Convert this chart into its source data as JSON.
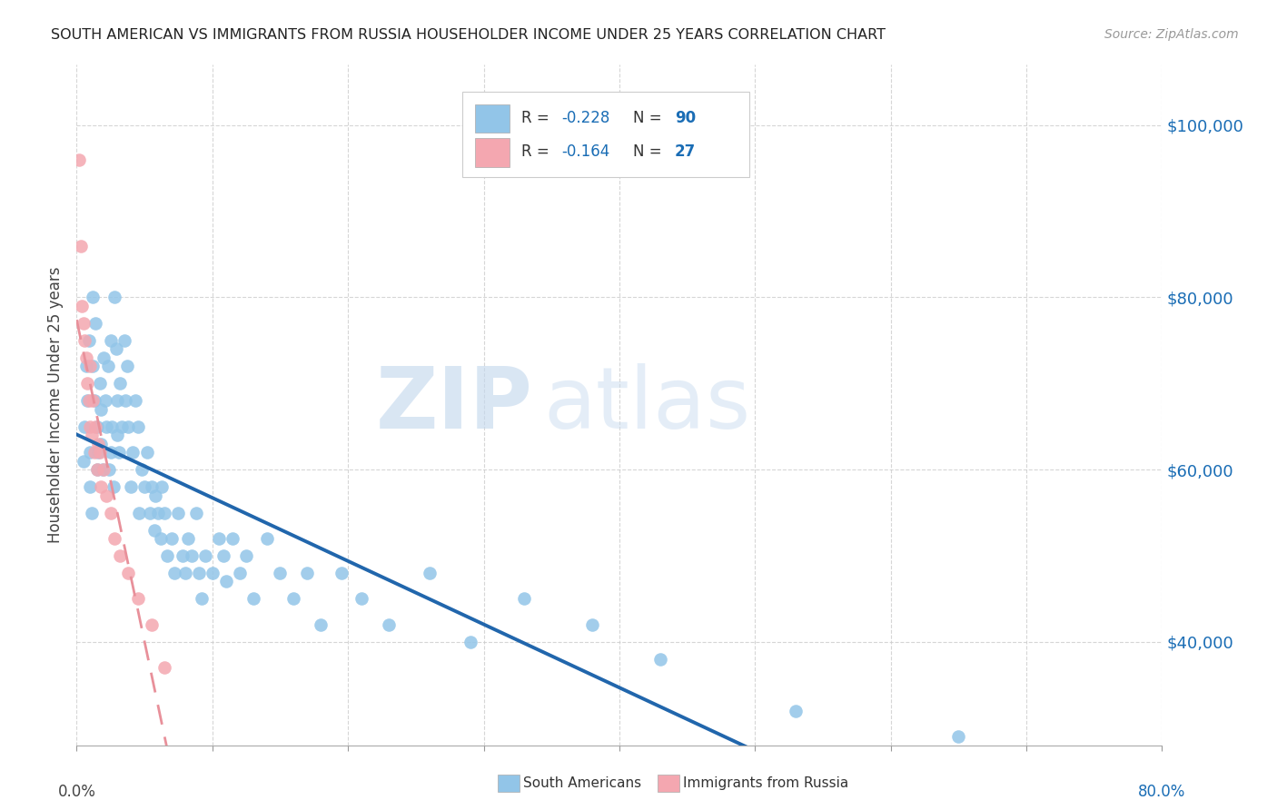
{
  "title": "SOUTH AMERICAN VS IMMIGRANTS FROM RUSSIA HOUSEHOLDER INCOME UNDER 25 YEARS CORRELATION CHART",
  "source": "Source: ZipAtlas.com",
  "ylabel": "Householder Income Under 25 years",
  "ytick_values": [
    40000,
    60000,
    80000,
    100000
  ],
  "xlim": [
    0.0,
    0.8
  ],
  "ylim": [
    28000,
    107000
  ],
  "R1": "-0.228",
  "N1": "90",
  "R2": "-0.164",
  "N2": "27",
  "blue_color": "#92c5e8",
  "pink_color": "#f4a7b0",
  "trendline1_color": "#2166ac",
  "trendline2_color": "#e8909a",
  "trendline2_dash": [
    6,
    4
  ],
  "watermark_zip": "ZIP",
  "watermark_atlas": "atlas",
  "south_americans_x": [
    0.005,
    0.006,
    0.007,
    0.008,
    0.009,
    0.01,
    0.01,
    0.011,
    0.012,
    0.012,
    0.013,
    0.014,
    0.015,
    0.015,
    0.016,
    0.017,
    0.018,
    0.018,
    0.019,
    0.02,
    0.021,
    0.022,
    0.023,
    0.024,
    0.025,
    0.025,
    0.026,
    0.027,
    0.028,
    0.029,
    0.03,
    0.03,
    0.031,
    0.032,
    0.033,
    0.035,
    0.036,
    0.037,
    0.038,
    0.04,
    0.041,
    0.043,
    0.045,
    0.046,
    0.048,
    0.05,
    0.052,
    0.054,
    0.055,
    0.057,
    0.058,
    0.06,
    0.062,
    0.063,
    0.065,
    0.067,
    0.07,
    0.072,
    0.075,
    0.078,
    0.08,
    0.082,
    0.085,
    0.088,
    0.09,
    0.092,
    0.095,
    0.1,
    0.105,
    0.108,
    0.11,
    0.115,
    0.12,
    0.125,
    0.13,
    0.14,
    0.15,
    0.16,
    0.17,
    0.18,
    0.195,
    0.21,
    0.23,
    0.26,
    0.29,
    0.33,
    0.38,
    0.43,
    0.53,
    0.65
  ],
  "south_americans_y": [
    61000,
    65000,
    72000,
    68000,
    75000,
    62000,
    58000,
    55000,
    80000,
    72000,
    68000,
    77000,
    65000,
    60000,
    62000,
    70000,
    67000,
    63000,
    60000,
    73000,
    68000,
    65000,
    72000,
    60000,
    75000,
    62000,
    65000,
    58000,
    80000,
    74000,
    68000,
    64000,
    62000,
    70000,
    65000,
    75000,
    68000,
    72000,
    65000,
    58000,
    62000,
    68000,
    65000,
    55000,
    60000,
    58000,
    62000,
    55000,
    58000,
    53000,
    57000,
    55000,
    52000,
    58000,
    55000,
    50000,
    52000,
    48000,
    55000,
    50000,
    48000,
    52000,
    50000,
    55000,
    48000,
    45000,
    50000,
    48000,
    52000,
    50000,
    47000,
    52000,
    48000,
    50000,
    45000,
    52000,
    48000,
    45000,
    48000,
    42000,
    48000,
    45000,
    42000,
    48000,
    40000,
    45000,
    42000,
    38000,
    32000,
    29000
  ],
  "russia_x": [
    0.002,
    0.003,
    0.004,
    0.005,
    0.006,
    0.007,
    0.008,
    0.009,
    0.01,
    0.01,
    0.011,
    0.012,
    0.013,
    0.014,
    0.015,
    0.016,
    0.017,
    0.018,
    0.02,
    0.022,
    0.025,
    0.028,
    0.032,
    0.038,
    0.045,
    0.055,
    0.065
  ],
  "russia_y": [
    96000,
    86000,
    79000,
    77000,
    75000,
    73000,
    70000,
    68000,
    65000,
    72000,
    64000,
    68000,
    62000,
    65000,
    60000,
    63000,
    62000,
    58000,
    60000,
    57000,
    55000,
    52000,
    50000,
    48000,
    45000,
    42000,
    37000
  ]
}
